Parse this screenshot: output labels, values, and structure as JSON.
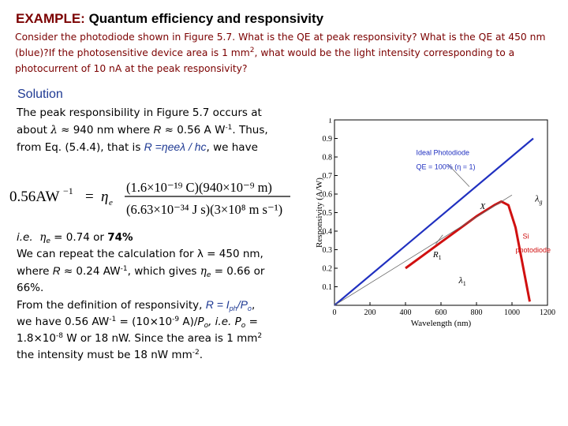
{
  "title": {
    "head": "EXAMPLE:",
    "rest": " Quantum efficiency and responsivity"
  },
  "problem": {
    "part1": "Consider the photodiode shown in Figure 5.7. What is the QE at peak responsivity? What is the QE at 450 nm (blue)?If the photosensitive device area is 1 mm",
    "sup": "2",
    "part2": ", what would be the light intensity corresponding to a photocurrent of 10 nA at the peak responsivity?"
  },
  "solution": {
    "heading": "Solution",
    "p1_line1": "The peak responsibility in Figure 5.7   occurs at",
    "p1_about": "about",
    "lambda": "λ",
    "approx": "≈",
    "p1_value": "940 nm where",
    "R": "R",
    "p1_rvalue": "0.56 A W",
    "minus1": "-1",
    "p1_thus": ". Thus,",
    "p1_line3_pre": "from Eq. (5.4.4), that is",
    "formula": "R =ηeeλ / hc",
    "p1_line3_post": ", we have"
  },
  "equation": {
    "lhs": "0.56AW",
    "lhs_sup": "−1",
    "eq": "=",
    "eta": "η",
    "eta_sub": "e",
    "num": "(1.6×10⁻¹⁹ C)(940×10⁻⁹ m)",
    "den": "(6.63×10⁻³⁴ J s)(3×10⁸ m s⁻¹)"
  },
  "solution2": {
    "ie": "i.e.",
    "eta": "η",
    "eta_sub": "e",
    "ie_rest": "= 0.74 or",
    "ie_bold": "74%",
    "line2": "We can repeat the calculation for λ = 450 nm,",
    "line3_pre": "where",
    "R": "R",
    "line3_mid": "≈ 0.24 AW",
    "minus1": "-1",
    "line3_post": ", which gives",
    "line3_end": "= 0.66 or",
    "line4": "66%.",
    "line5_pre": "From the definition of responsivity,",
    "line5_formula": "R = I",
    "ph": "ph",
    "slash_p": "/P",
    "o": "o",
    "comma": ",",
    "line6_pre": "we have 0.56 AW",
    "line6_mid": " = (10×10",
    "minus9": "-9",
    "line6_mid2": " A)/",
    "P": "P",
    "line6_ie": ", i.e.",
    "line6_end": " =",
    "line7_pre": "1.8×10",
    "minus8": "-8",
    "line7_post": " W or 18 nW. Since the area is 1 mm",
    "two": "2",
    "line8": "the intensity must be 18 nW mm",
    "minus2": "-2",
    "period": "."
  },
  "chart_data": {
    "type": "line",
    "xlabel": "Wavelength (nm)",
    "ylabel": "Responsivity (A/W)",
    "xlim": [
      0,
      1200
    ],
    "ylim": [
      0,
      1
    ],
    "xticks": [
      0,
      200,
      400,
      600,
      800,
      1000,
      1200
    ],
    "yticks": [
      0.1,
      0.2,
      0.3,
      0.4,
      0.5,
      0.6,
      0.7,
      0.8,
      0.9,
      1
    ],
    "tick_labels_y": [
      "0.1",
      "0.2",
      "0.3",
      "0.4",
      "0.5",
      "0.6",
      "0.7",
      "0.8",
      "0.9",
      "1"
    ],
    "series": [
      {
        "name": "Ideal Photodiode",
        "color": "#2030c0",
        "x": [
          0,
          1120
        ],
        "y": [
          0,
          0.9
        ]
      },
      {
        "name": "Si photodiode",
        "color": "#d01010",
        "x": [
          400,
          500,
          600,
          700,
          800,
          850,
          900,
          940,
          980,
          1020,
          1060,
          1100
        ],
        "y": [
          0.2,
          0.27,
          0.34,
          0.41,
          0.48,
          0.51,
          0.54,
          0.56,
          0.54,
          0.42,
          0.22,
          0.02
        ]
      }
    ],
    "annotations": {
      "ideal_line1": "Ideal Photodiode",
      "ideal_line2": "QE = 100% (η = 1)",
      "si_line1": "Si",
      "si_line2": "photodiode",
      "X": "X",
      "R1": "R",
      "R1_sub": "1",
      "lambda1": "λ",
      "lambda1_sub": "1",
      "lambda_g": "λ",
      "lambda_g_sub": "g"
    },
    "colors": {
      "ideal": "#2030c0",
      "si": "#d01010",
      "tangent": "#666666"
    }
  }
}
